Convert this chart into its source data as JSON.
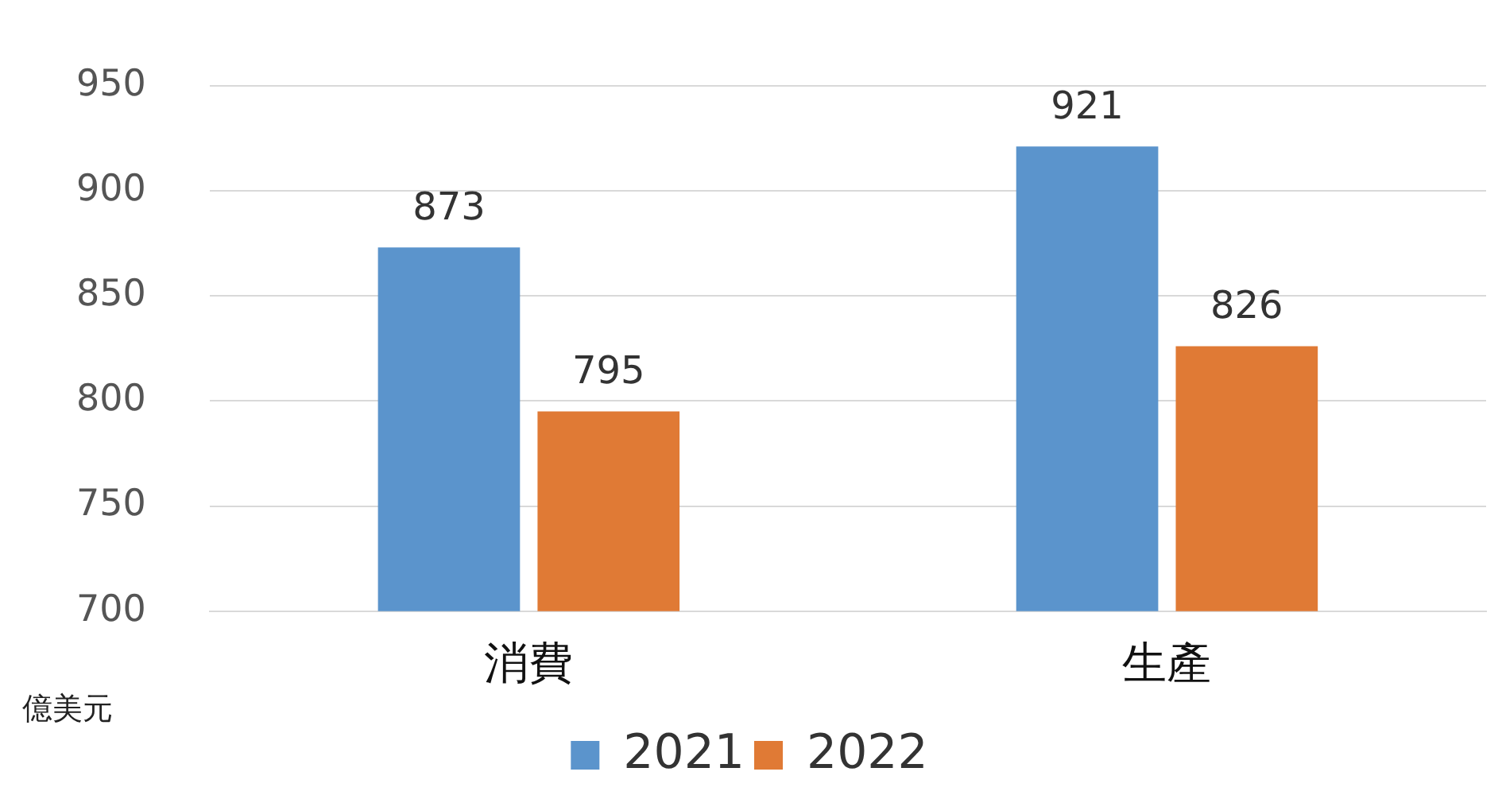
{
  "chart_data": {
    "type": "bar",
    "ylabel": "億美元",
    "categories": [
      "消費",
      "生產"
    ],
    "series": [
      {
        "name": "2021",
        "color": "#5b94cc",
        "values": [
          873,
          921
        ]
      },
      {
        "name": "2022",
        "color": "#e07a35",
        "values": [
          795,
          826
        ]
      }
    ],
    "ylim": [
      700,
      950
    ],
    "yticks": [
      700,
      750,
      800,
      850,
      900,
      950
    ],
    "grid": "y",
    "legend": "bottom",
    "data_labels": true
  }
}
